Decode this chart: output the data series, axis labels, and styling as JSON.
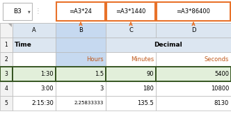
{
  "name_box": "B3",
  "col_headers": [
    "A",
    "B",
    "C",
    "D"
  ],
  "formula_texts": [
    "=A3*24",
    "=A3*1440",
    "=A3*86400"
  ],
  "subheaders": [
    "Hours",
    "Minutes",
    "Seconds"
  ],
  "subheader_color": "#C0581A",
  "cells_row1": [
    "Time",
    "",
    "Decimal",
    ""
  ],
  "cells_row2": [
    "1:30",
    "1.5",
    "90",
    "5400"
  ],
  "cells_row3": [
    "3:00",
    "3",
    "180",
    "10800"
  ],
  "cells_row4": [
    "2:15:30",
    "2.25833333",
    "135.5",
    "8130"
  ],
  "header_bg": "#dce6f1",
  "selected_col_bg": "#c6d9f0",
  "selected_row_bg": "#e2efda",
  "formula_orange": "#E8722A",
  "grid_color": "#b8b8b8",
  "green_border": "#375623",
  "row_label_bg": "#f2f2f2",
  "white": "#ffffff",
  "triangle_color": "#C0581A"
}
